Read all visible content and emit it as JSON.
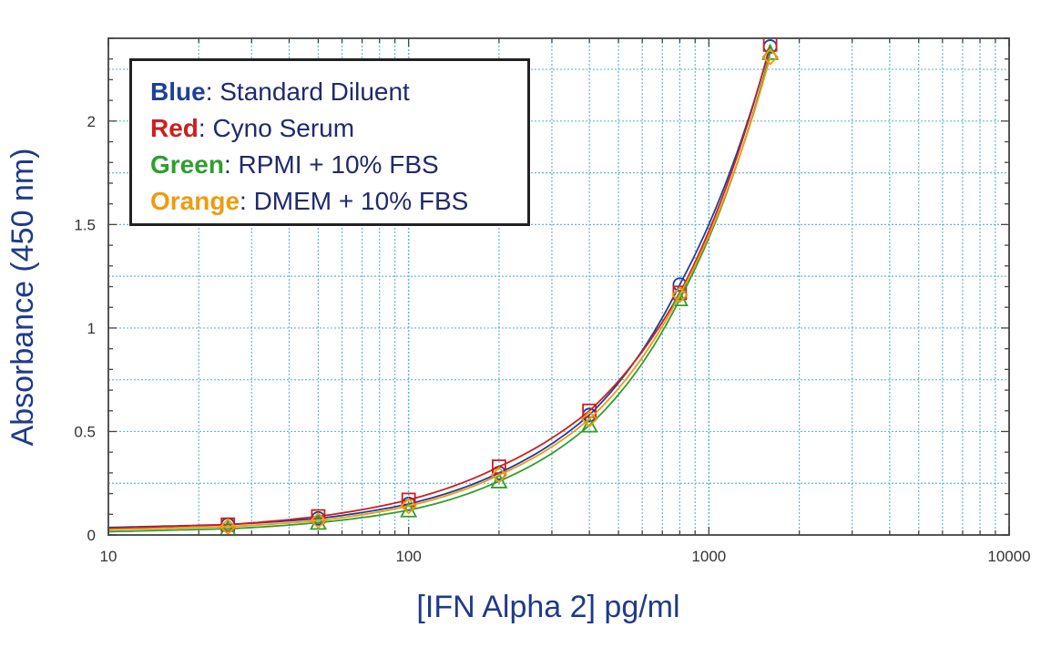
{
  "chart_data": {
    "type": "line",
    "xlabel": "[IFN Alpha 2] pg/ml",
    "ylabel": "Absorbance (450 nm)",
    "xscale": "log",
    "xlim": [
      10,
      10000
    ],
    "ylim": [
      0,
      2.4
    ],
    "x_ticks": [
      "10",
      "100",
      "1000",
      "10000"
    ],
    "y_ticks": [
      "0",
      "0.5",
      "1",
      "1.5",
      "2"
    ],
    "grid": true,
    "legend_placement": "top-left",
    "legend": [
      {
        "key": "Blue",
        "text": ": Standard Diluent",
        "color": "#1f3f9a"
      },
      {
        "key": "Red",
        "text": ": Cyno Serum",
        "color": "#cc1f1f"
      },
      {
        "key": "Green",
        "text": ": RPMI + 10% FBS",
        "color": "#2f9e2f"
      },
      {
        "key": "Orange",
        "text": ": DMEM + 10% FBS",
        "color": "#f09a10"
      }
    ],
    "x": [
      25,
      50,
      100,
      200,
      400,
      800,
      1600
    ],
    "series": [
      {
        "name": "Standard Diluent",
        "color": "#1f3f9a",
        "marker": "circle",
        "values": [
          0.05,
          0.08,
          0.15,
          0.3,
          0.58,
          1.21,
          2.36
        ]
      },
      {
        "name": "Cyno Serum",
        "color": "#cc1f1f",
        "marker": "square",
        "values": [
          0.05,
          0.09,
          0.17,
          0.33,
          0.6,
          1.17,
          2.37
        ]
      },
      {
        "name": "RPMI + 10% FBS",
        "color": "#2f9e2f",
        "marker": "triangle",
        "values": [
          0.03,
          0.06,
          0.12,
          0.26,
          0.53,
          1.14,
          2.33
        ]
      },
      {
        "name": "DMEM + 10% FBS",
        "color": "#f09a10",
        "marker": "diamond",
        "values": [
          0.04,
          0.07,
          0.14,
          0.29,
          0.56,
          1.16,
          2.31
        ]
      }
    ]
  }
}
